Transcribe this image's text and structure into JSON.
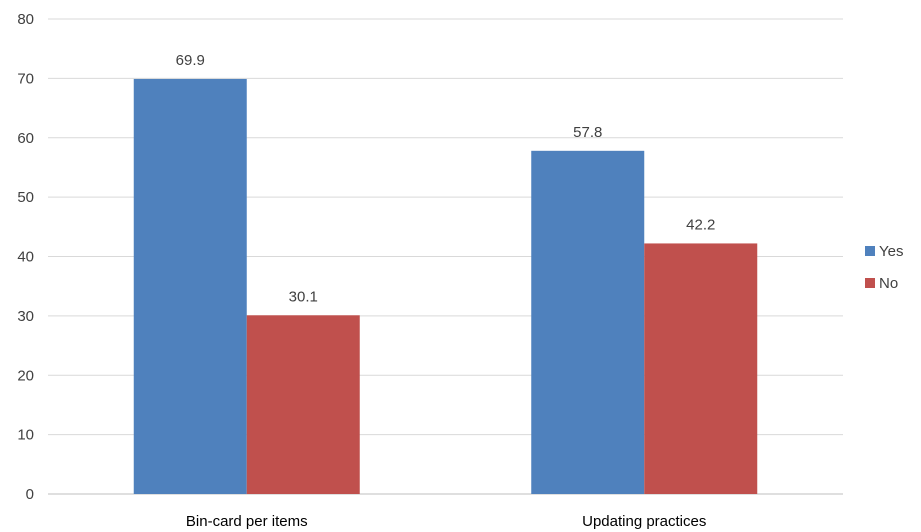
{
  "chart_data": {
    "type": "bar",
    "title": "",
    "xlabel": "",
    "ylabel": "",
    "categories": [
      "Bin-card per items",
      "Updating practices"
    ],
    "series": [
      {
        "name": "Yes",
        "values": [
          69.9,
          57.8
        ],
        "color": "#4f81bd"
      },
      {
        "name": "No",
        "values": [
          30.1,
          42.2
        ],
        "color": "#c0504d"
      }
    ],
    "ylim": [
      0,
      80
    ],
    "yticks": [
      0,
      10,
      20,
      30,
      40,
      50,
      60,
      70,
      80
    ],
    "data_labels": true,
    "grid": true,
    "legend_position": "right"
  }
}
